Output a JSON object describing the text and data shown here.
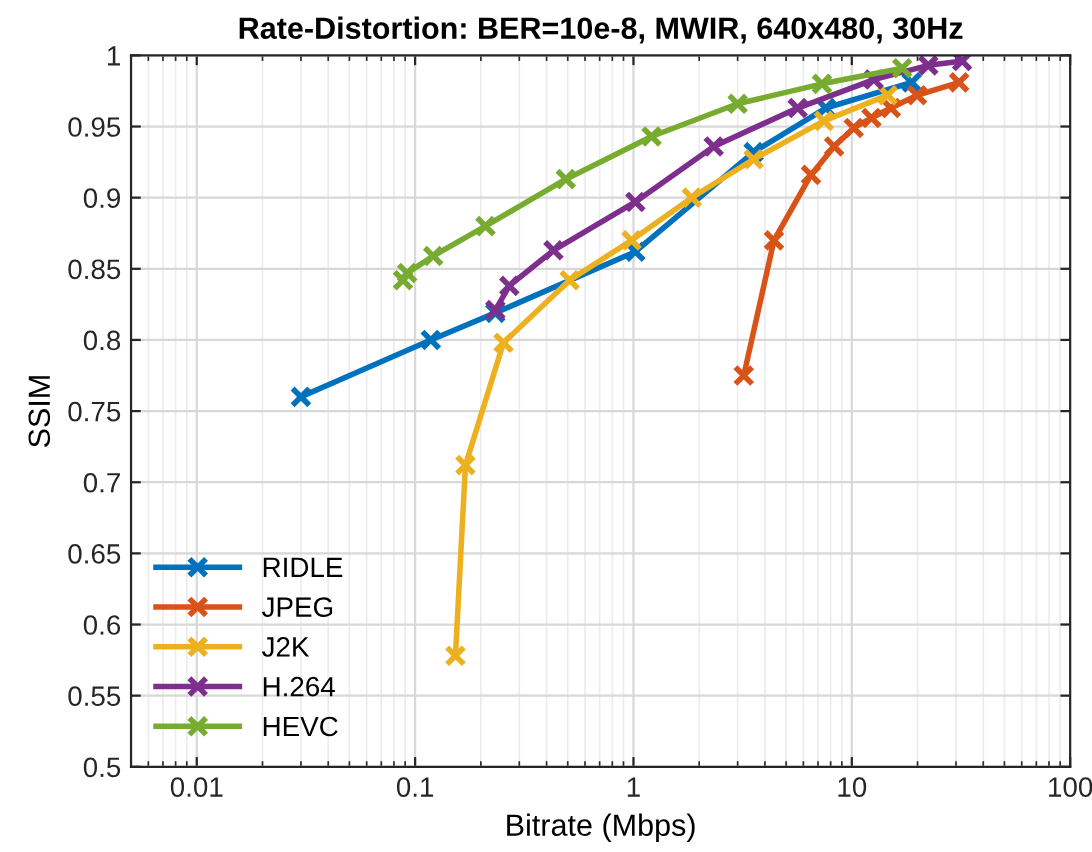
{
  "chart_data": {
    "type": "line",
    "title": "Rate-Distortion: BER=10e-8, MWIR, 640x480, 30Hz",
    "xlabel": "Bitrate (Mbps)",
    "ylabel": "SSIM",
    "log": "x",
    "xlim": [
      0.005,
      100
    ],
    "xticks": [
      0.01,
      0.1,
      1,
      10,
      100
    ],
    "ylim": [
      0.5,
      1
    ],
    "yticks": [
      0.5,
      0.55,
      0.6,
      0.65,
      0.7,
      0.75,
      0.8,
      0.85,
      0.9,
      0.95,
      1
    ],
    "grid": true,
    "legend": "bottom left",
    "marker": "cross",
    "line_style": "solid",
    "series": [
      {
        "name": "RIDLE",
        "color": "#0072bd",
        "x": [
          0.03,
          0.118,
          0.233,
          1.02,
          3.55,
          7.6,
          18.8
        ],
        "values": [
          0.76,
          0.8,
          0.819,
          0.862,
          0.932,
          0.963,
          0.981
        ]
      },
      {
        "name": "JPEG",
        "color": "#d95319",
        "x": [
          3.2,
          4.4,
          6.5,
          8.3,
          10.2,
          12.3,
          15.1,
          19.9,
          31
        ],
        "values": [
          0.775,
          0.87,
          0.916,
          0.936,
          0.949,
          0.956,
          0.963,
          0.972,
          0.981
        ]
      },
      {
        "name": "J2K",
        "color": "#edb120",
        "x": [
          0.153,
          0.17,
          0.254,
          0.51,
          0.98,
          1.85,
          3.55,
          7.45,
          14.6
        ],
        "values": [
          0.578,
          0.712,
          0.798,
          0.842,
          0.87,
          0.9,
          0.927,
          0.954,
          0.972
        ]
      },
      {
        "name": "H.264",
        "color": "#7e2f8e",
        "x": [
          0.233,
          0.27,
          0.43,
          1.02,
          2.33,
          5.65,
          12.6,
          22.4,
          32
        ],
        "values": [
          0.821,
          0.838,
          0.863,
          0.897,
          0.936,
          0.963,
          0.983,
          0.993,
          0.996
        ]
      },
      {
        "name": "HEVC",
        "color": "#77ac30",
        "x": [
          0.088,
          0.092,
          0.121,
          0.21,
          0.49,
          1.21,
          3.0,
          7.3,
          17
        ],
        "values": [
          0.842,
          0.847,
          0.859,
          0.88,
          0.913,
          0.943,
          0.966,
          0.98,
          0.991
        ]
      }
    ]
  }
}
